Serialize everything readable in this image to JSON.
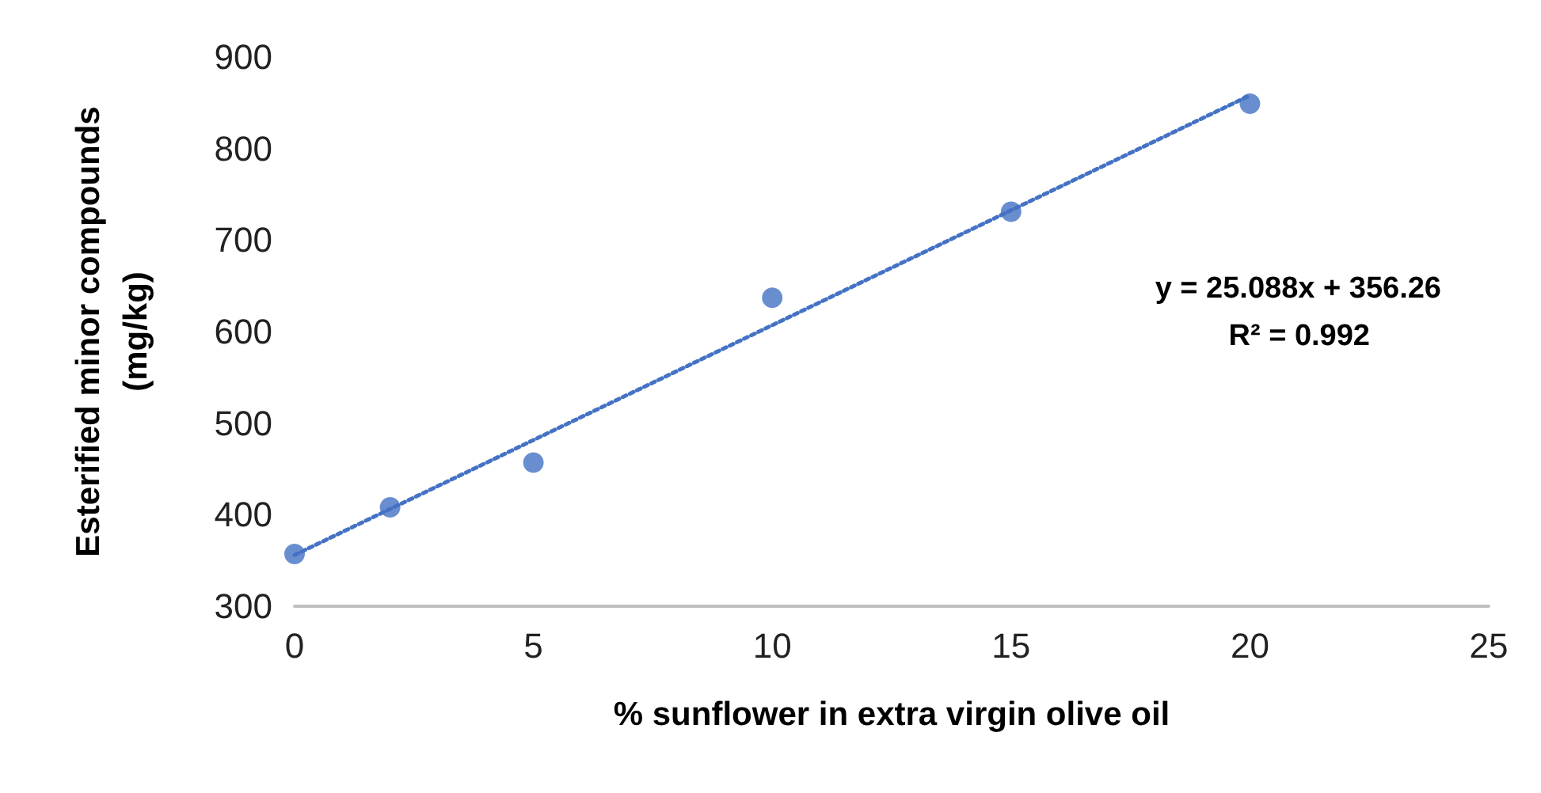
{
  "chart_data": {
    "type": "scatter",
    "xlabel": "% sunflower in extra virgin olive oil",
    "ylabel": "Esterified minor compounds\n(mg/kg)",
    "x": [
      0,
      2,
      5,
      10,
      15,
      20
    ],
    "series": [
      {
        "color": "#4472c4",
        "values": [
          357,
          408,
          457,
          637,
          731,
          849
        ],
        "marker": "circle"
      },
      {
        "type": "line",
        "color": "#4472c4",
        "x": [
          0,
          20
        ],
        "values": [
          356,
          858
        ],
        "line_style": "dotted",
        "marker": "none"
      }
    ],
    "xlim": [
      0,
      25
    ],
    "xticks": [
      0,
      5,
      10,
      15,
      20,
      25
    ],
    "ylim": [
      300,
      900
    ],
    "yticks": [
      300,
      400,
      500,
      600,
      700,
      800,
      900
    ],
    "grid": false,
    "annotations": [
      "y = 25.088x + 356.26",
      "R² = 0.992"
    ]
  }
}
